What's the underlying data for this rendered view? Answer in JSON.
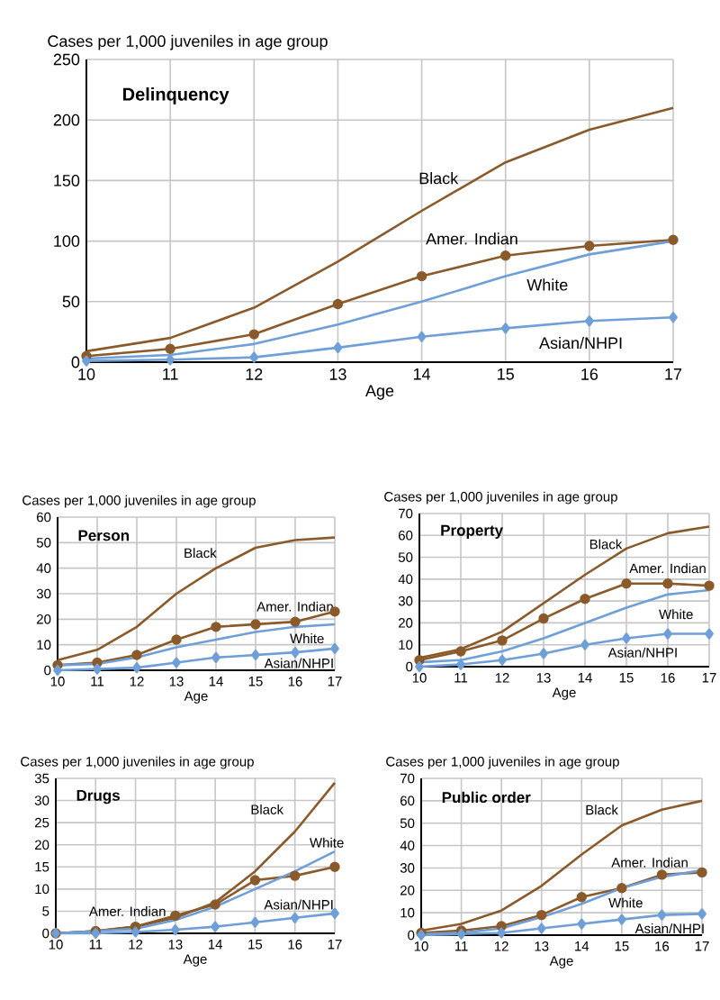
{
  "chart_data": [
    {
      "type": "line",
      "title": "Delinquency",
      "xlabel": "Age",
      "ylabel": "Cases per 1,000 juveniles in age group",
      "x": [
        10,
        11,
        12,
        13,
        14,
        15,
        16,
        17
      ],
      "xlim": [
        10,
        17
      ],
      "xticks": [
        10,
        11,
        12,
        13,
        14,
        15,
        16,
        17
      ],
      "ylim": [
        0,
        250
      ],
      "yticks": [
        0,
        50,
        100,
        150,
        200,
        250
      ],
      "grid": true,
      "legend": false,
      "series": [
        {
          "name": "Black",
          "color": "#8b5a2b",
          "marker": "none",
          "values": [
            9,
            20,
            45,
            83,
            125,
            165,
            192,
            210
          ]
        },
        {
          "name": "Amer. Indian",
          "color": "#8b5a2b",
          "marker": "circle",
          "values": [
            5,
            11,
            23,
            48,
            71,
            88,
            96,
            101
          ]
        },
        {
          "name": "White",
          "color": "#6f9fd8",
          "marker": "none",
          "values": [
            3,
            6,
            15,
            31,
            50,
            71,
            89,
            100
          ]
        },
        {
          "name": "Asian/NHPI",
          "color": "#6f9fd8",
          "marker": "diamond",
          "values": [
            1,
            2,
            4,
            12,
            21,
            28,
            34,
            37
          ]
        }
      ]
    },
    {
      "type": "line",
      "title": "Person",
      "xlabel": "Age",
      "ylabel": "Cases per 1,000 juveniles in age group",
      "x": [
        10,
        11,
        12,
        13,
        14,
        15,
        16,
        17
      ],
      "xlim": [
        10,
        17
      ],
      "xticks": [
        10,
        11,
        12,
        13,
        14,
        15,
        16,
        17
      ],
      "ylim": [
        0,
        60
      ],
      "yticks": [
        0,
        10,
        20,
        30,
        40,
        50,
        60
      ],
      "grid": true,
      "legend": false,
      "series": [
        {
          "name": "Black",
          "color": "#8b5a2b",
          "marker": "none",
          "values": [
            4,
            8,
            17,
            30,
            40,
            48,
            51,
            52
          ]
        },
        {
          "name": "Amer. Indian",
          "color": "#8b5a2b",
          "marker": "circle",
          "values": [
            2,
            3,
            6,
            12,
            17,
            18,
            19,
            23
          ]
        },
        {
          "name": "White",
          "color": "#6f9fd8",
          "marker": "none",
          "values": [
            2,
            2.5,
            5,
            9,
            12,
            15,
            17,
            18
          ]
        },
        {
          "name": "Asian/NHPI",
          "color": "#6f9fd8",
          "marker": "diamond",
          "values": [
            0,
            0.5,
            1,
            3,
            5,
            6,
            7,
            8.5
          ]
        }
      ]
    },
    {
      "type": "line",
      "title": "Property",
      "xlabel": "Age",
      "ylabel": "Cases per 1,000 juveniles in age group",
      "x": [
        10,
        11,
        12,
        13,
        14,
        15,
        16,
        17
      ],
      "xlim": [
        10,
        17
      ],
      "xticks": [
        10,
        11,
        12,
        13,
        14,
        15,
        16,
        17
      ],
      "ylim": [
        0,
        70
      ],
      "yticks": [
        0,
        10,
        20,
        30,
        40,
        50,
        60,
        70
      ],
      "grid": true,
      "legend": false,
      "series": [
        {
          "name": "Black",
          "color": "#8b5a2b",
          "marker": "none",
          "values": [
            4,
            8,
            16,
            29,
            42,
            54,
            61,
            64
          ]
        },
        {
          "name": "Amer. Indian",
          "color": "#8b5a2b",
          "marker": "circle",
          "values": [
            3,
            7,
            12,
            22,
            31,
            38,
            38,
            37
          ]
        },
        {
          "name": "White",
          "color": "#6f9fd8",
          "marker": "none",
          "values": [
            2,
            3,
            7,
            13,
            20,
            27,
            33,
            35
          ]
        },
        {
          "name": "Asian/NHPI",
          "color": "#6f9fd8",
          "marker": "diamond",
          "values": [
            0,
            1,
            3,
            6,
            10,
            13,
            15,
            15
          ]
        }
      ]
    },
    {
      "type": "line",
      "title": "Drugs",
      "xlabel": "Age",
      "ylabel": "Cases per 1,000 juveniles in age group",
      "x": [
        10,
        11,
        12,
        13,
        14,
        15,
        16,
        17
      ],
      "xlim": [
        10,
        17
      ],
      "xticks": [
        10,
        11,
        12,
        13,
        14,
        15,
        16,
        17
      ],
      "ylim": [
        0,
        35
      ],
      "yticks": [
        0,
        5,
        10,
        15,
        20,
        25,
        30,
        35
      ],
      "grid": true,
      "legend": false,
      "series": [
        {
          "name": "Black",
          "color": "#8b5a2b",
          "marker": "none",
          "values": [
            0,
            0.5,
            1.5,
            3.5,
            7,
            14,
            23,
            34
          ]
        },
        {
          "name": "Amer. Indian",
          "color": "#8b5a2b",
          "marker": "circle",
          "values": [
            0,
            0.5,
            1.5,
            4,
            6.5,
            12,
            13,
            15
          ]
        },
        {
          "name": "White",
          "color": "#6f9fd8",
          "marker": "none",
          "values": [
            0,
            0.5,
            1,
            3,
            6,
            10,
            14,
            18.5
          ]
        },
        {
          "name": "Asian/NHPI",
          "color": "#6f9fd8",
          "marker": "diamond",
          "values": [
            0,
            0,
            0.3,
            0.8,
            1.5,
            2.5,
            3.5,
            4.5
          ]
        }
      ]
    },
    {
      "type": "line",
      "title": "Public order",
      "xlabel": "Age",
      "ylabel": "Cases per 1,000 juveniles in age group",
      "x": [
        10,
        11,
        12,
        13,
        14,
        15,
        16,
        17
      ],
      "xlim": [
        10,
        17
      ],
      "xticks": [
        10,
        11,
        12,
        13,
        14,
        15,
        16,
        17
      ],
      "ylim": [
        0,
        70
      ],
      "yticks": [
        0,
        10,
        20,
        30,
        40,
        50,
        60,
        70
      ],
      "grid": true,
      "legend": false,
      "series": [
        {
          "name": "Black",
          "color": "#8b5a2b",
          "marker": "none",
          "values": [
            2,
            5,
            11,
            22,
            36,
            49,
            56,
            60
          ]
        },
        {
          "name": "Amer. Indian",
          "color": "#8b5a2b",
          "marker": "circle",
          "values": [
            1,
            2,
            4,
            9,
            17,
            21,
            27,
            28
          ]
        },
        {
          "name": "White",
          "color": "#6f9fd8",
          "marker": "none",
          "values": [
            0.5,
            1,
            3,
            8,
            14,
            21,
            26,
            29
          ]
        },
        {
          "name": "Asian/NHPI",
          "color": "#6f9fd8",
          "marker": "diamond",
          "values": [
            0,
            0.5,
            1,
            3,
            5,
            7,
            9,
            9.5
          ]
        }
      ]
    }
  ]
}
